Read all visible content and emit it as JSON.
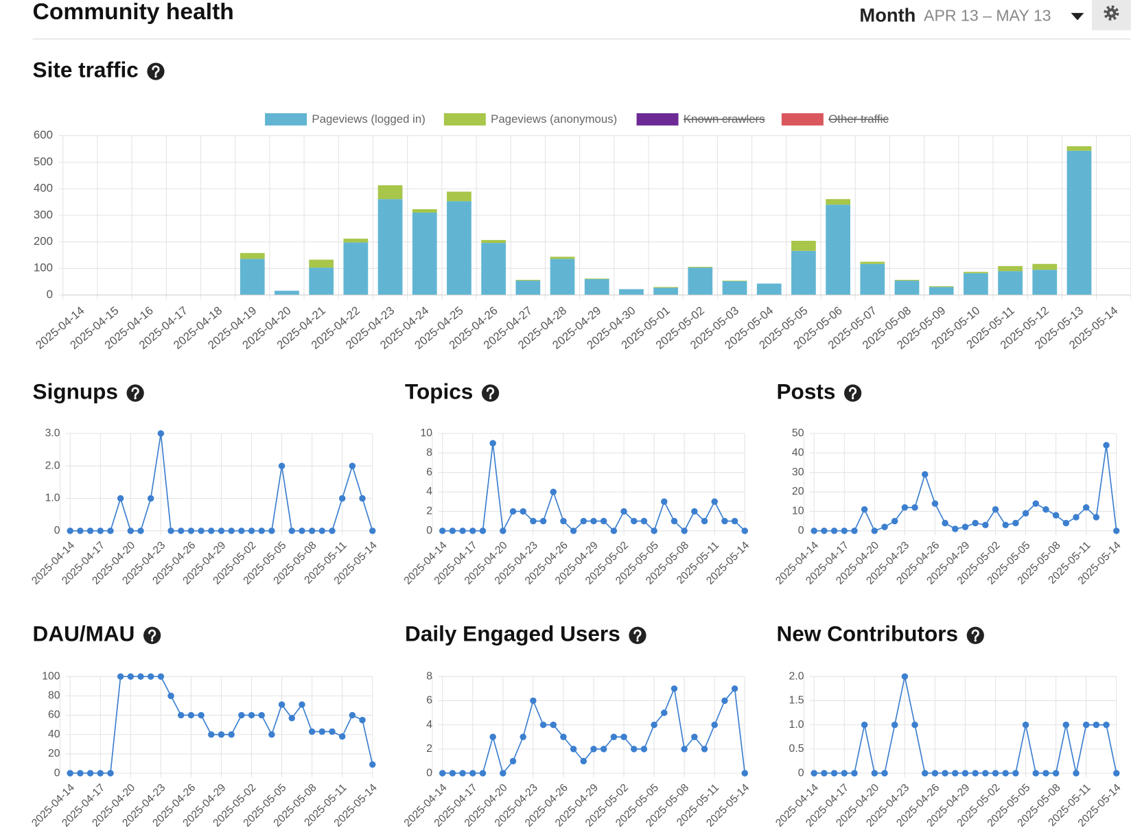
{
  "header": {
    "title": "Community health",
    "period": "Month",
    "range": "APR 13 – MAY 13"
  },
  "chart_data": [
    {
      "type": "bar",
      "title": "Site traffic",
      "stacked": true,
      "legend": "top",
      "grid": true,
      "categories": [
        "2025-04-14",
        "2025-04-15",
        "2025-04-16",
        "2025-04-17",
        "2025-04-18",
        "2025-04-19",
        "2025-04-20",
        "2025-04-21",
        "2025-04-22",
        "2025-04-23",
        "2025-04-24",
        "2025-04-25",
        "2025-04-26",
        "2025-04-27",
        "2025-04-28",
        "2025-04-29",
        "2025-04-30",
        "2025-05-01",
        "2025-05-02",
        "2025-05-03",
        "2025-05-04",
        "2025-05-05",
        "2025-05-06",
        "2025-05-07",
        "2025-05-08",
        "2025-05-09",
        "2025-05-10",
        "2025-05-11",
        "2025-05-12",
        "2025-05-13",
        "2025-05-14"
      ],
      "series": [
        {
          "name": "Pageviews (logged in)",
          "color": "#61b5d3",
          "values": [
            0,
            0,
            0,
            0,
            0,
            136,
            16,
            103,
            198,
            361,
            310,
            353,
            196,
            54,
            136,
            60,
            22,
            27,
            103,
            52,
            43,
            166,
            340,
            117,
            54,
            30,
            82,
            90,
            95,
            543,
            1
          ]
        },
        {
          "name": "Pageviews (anonymous)",
          "color": "#a7c64a",
          "values": [
            0,
            0,
            0,
            0,
            0,
            22,
            0,
            30,
            14,
            52,
            13,
            36,
            11,
            3,
            8,
            2,
            0,
            3,
            3,
            2,
            0,
            38,
            21,
            8,
            3,
            3,
            5,
            19,
            22,
            17,
            0
          ]
        },
        {
          "name": "Known crawlers",
          "color": "#6d2a96",
          "hidden": true
        },
        {
          "name": "Other traffic",
          "color": "#d9575d",
          "hidden": true
        }
      ],
      "ylim": [
        0,
        600
      ],
      "yticks": [
        0,
        100,
        200,
        300,
        400,
        500,
        600
      ]
    },
    {
      "type": "line",
      "title": "Signups",
      "color": "#3c7fcf",
      "grid": true,
      "xtick_every": 3,
      "categories": [
        "2025-04-14",
        "2025-04-15",
        "2025-04-16",
        "2025-04-17",
        "2025-04-18",
        "2025-04-19",
        "2025-04-20",
        "2025-04-21",
        "2025-04-22",
        "2025-04-23",
        "2025-04-24",
        "2025-04-25",
        "2025-04-26",
        "2025-04-27",
        "2025-04-28",
        "2025-04-29",
        "2025-04-30",
        "2025-05-01",
        "2025-05-02",
        "2025-05-03",
        "2025-05-04",
        "2025-05-05",
        "2025-05-06",
        "2025-05-07",
        "2025-05-08",
        "2025-05-09",
        "2025-05-10",
        "2025-05-11",
        "2025-05-12",
        "2025-05-13",
        "2025-05-14"
      ],
      "values": [
        0,
        0,
        0,
        0,
        0,
        1,
        0,
        0,
        1,
        3,
        0,
        0,
        0,
        0,
        0,
        0,
        0,
        0,
        0,
        0,
        0,
        2,
        0,
        0,
        0,
        0,
        0,
        1,
        2,
        1,
        0
      ],
      "ylim": [
        0,
        3
      ],
      "yticks": [
        0,
        {
          "value": 1,
          "label": "1.0"
        },
        {
          "value": 2,
          "label": "2.0"
        },
        {
          "value": 3,
          "label": "3.0"
        }
      ]
    },
    {
      "type": "line",
      "title": "Topics",
      "color": "#3c7fcf",
      "grid": true,
      "xtick_every": 3,
      "categories": [
        "2025-04-14",
        "2025-04-15",
        "2025-04-16",
        "2025-04-17",
        "2025-04-18",
        "2025-04-19",
        "2025-04-20",
        "2025-04-21",
        "2025-04-22",
        "2025-04-23",
        "2025-04-24",
        "2025-04-25",
        "2025-04-26",
        "2025-04-27",
        "2025-04-28",
        "2025-04-29",
        "2025-04-30",
        "2025-05-01",
        "2025-05-02",
        "2025-05-03",
        "2025-05-04",
        "2025-05-05",
        "2025-05-06",
        "2025-05-07",
        "2025-05-08",
        "2025-05-09",
        "2025-05-10",
        "2025-05-11",
        "2025-05-12",
        "2025-05-13",
        "2025-05-14"
      ],
      "values": [
        0,
        0,
        0,
        0,
        0,
        9,
        0,
        2,
        2,
        1,
        1,
        4,
        1,
        0,
        1,
        1,
        1,
        0,
        2,
        1,
        1,
        0,
        3,
        1,
        0,
        2,
        1,
        3,
        1,
        1,
        0
      ],
      "ylim": [
        0,
        10
      ],
      "yticks": [
        0,
        2,
        4,
        6,
        8,
        10
      ]
    },
    {
      "type": "line",
      "title": "Posts",
      "color": "#3c7fcf",
      "grid": true,
      "xtick_every": 3,
      "categories": [
        "2025-04-14",
        "2025-04-15",
        "2025-04-16",
        "2025-04-17",
        "2025-04-18",
        "2025-04-19",
        "2025-04-20",
        "2025-04-21",
        "2025-04-22",
        "2025-04-23",
        "2025-04-24",
        "2025-04-25",
        "2025-04-26",
        "2025-04-27",
        "2025-04-28",
        "2025-04-29",
        "2025-04-30",
        "2025-05-01",
        "2025-05-02",
        "2025-05-03",
        "2025-05-04",
        "2025-05-05",
        "2025-05-06",
        "2025-05-07",
        "2025-05-08",
        "2025-05-09",
        "2025-05-10",
        "2025-05-11",
        "2025-05-12",
        "2025-05-13",
        "2025-05-14"
      ],
      "values": [
        0,
        0,
        0,
        0,
        0,
        11,
        0,
        2,
        5,
        12,
        12,
        29,
        14,
        4,
        1,
        2,
        4,
        3,
        11,
        3,
        4,
        9,
        14,
        11,
        8,
        4,
        7,
        12,
        7,
        44,
        0
      ],
      "ylim": [
        0,
        50
      ],
      "yticks": [
        0,
        10,
        20,
        30,
        40,
        50
      ]
    },
    {
      "type": "line",
      "title": "DAU/MAU",
      "color": "#3c7fcf",
      "grid": true,
      "xtick_every": 3,
      "categories": [
        "2025-04-14",
        "2025-04-15",
        "2025-04-16",
        "2025-04-17",
        "2025-04-18",
        "2025-04-19",
        "2025-04-20",
        "2025-04-21",
        "2025-04-22",
        "2025-04-23",
        "2025-04-24",
        "2025-04-25",
        "2025-04-26",
        "2025-04-27",
        "2025-04-28",
        "2025-04-29",
        "2025-04-30",
        "2025-05-01",
        "2025-05-02",
        "2025-05-03",
        "2025-05-04",
        "2025-05-05",
        "2025-05-06",
        "2025-05-07",
        "2025-05-08",
        "2025-05-09",
        "2025-05-10",
        "2025-05-11",
        "2025-05-12",
        "2025-05-13",
        "2025-05-14"
      ],
      "values": [
        0,
        0,
        0,
        0,
        0,
        100,
        100,
        100,
        100,
        100,
        80,
        60,
        60,
        60,
        40,
        40,
        40,
        60,
        60,
        60,
        40,
        71,
        57,
        71,
        43,
        43,
        43,
        38,
        60,
        55,
        9
      ],
      "ylim": [
        0,
        100
      ],
      "yticks": [
        0,
        20,
        40,
        60,
        80,
        100
      ]
    },
    {
      "type": "line",
      "title": "Daily Engaged Users",
      "color": "#3c7fcf",
      "grid": true,
      "xtick_every": 3,
      "categories": [
        "2025-04-14",
        "2025-04-15",
        "2025-04-16",
        "2025-04-17",
        "2025-04-18",
        "2025-04-19",
        "2025-04-20",
        "2025-04-21",
        "2025-04-22",
        "2025-04-23",
        "2025-04-24",
        "2025-04-25",
        "2025-04-26",
        "2025-04-27",
        "2025-04-28",
        "2025-04-29",
        "2025-04-30",
        "2025-05-01",
        "2025-05-02",
        "2025-05-03",
        "2025-05-04",
        "2025-05-05",
        "2025-05-06",
        "2025-05-07",
        "2025-05-08",
        "2025-05-09",
        "2025-05-10",
        "2025-05-11",
        "2025-05-12",
        "2025-05-13",
        "2025-05-14"
      ],
      "values": [
        0,
        0,
        0,
        0,
        0,
        3,
        0,
        1,
        3,
        6,
        4,
        4,
        3,
        2,
        1,
        2,
        2,
        3,
        3,
        2,
        2,
        4,
        5,
        7,
        2,
        3,
        2,
        4,
        6,
        7,
        0
      ],
      "ylim": [
        0,
        8
      ],
      "yticks": [
        0,
        2,
        4,
        6,
        8
      ]
    },
    {
      "type": "line",
      "title": "New Contributors",
      "color": "#3c7fcf",
      "grid": true,
      "xtick_every": 3,
      "categories": [
        "2025-04-14",
        "2025-04-15",
        "2025-04-16",
        "2025-04-17",
        "2025-04-18",
        "2025-04-19",
        "2025-04-20",
        "2025-04-21",
        "2025-04-22",
        "2025-04-23",
        "2025-04-24",
        "2025-04-25",
        "2025-04-26",
        "2025-04-27",
        "2025-04-28",
        "2025-04-29",
        "2025-04-30",
        "2025-05-01",
        "2025-05-02",
        "2025-05-03",
        "2025-05-04",
        "2025-05-05",
        "2025-05-06",
        "2025-05-07",
        "2025-05-08",
        "2025-05-09",
        "2025-05-10",
        "2025-05-11",
        "2025-05-12",
        "2025-05-13",
        "2025-05-14"
      ],
      "values": [
        0,
        0,
        0,
        0,
        0,
        1,
        0,
        0,
        1,
        2,
        1,
        0,
        0,
        0,
        0,
        0,
        0,
        0,
        0,
        0,
        0,
        1,
        0,
        0,
        0,
        1,
        0,
        1,
        1,
        1,
        0
      ],
      "ylim": [
        0,
        2
      ],
      "yticks": [
        0,
        0.5,
        {
          "value": 1,
          "label": "1.0"
        },
        {
          "value": 1.5,
          "label": "1.5"
        },
        {
          "value": 2,
          "label": "2.0"
        }
      ]
    }
  ]
}
